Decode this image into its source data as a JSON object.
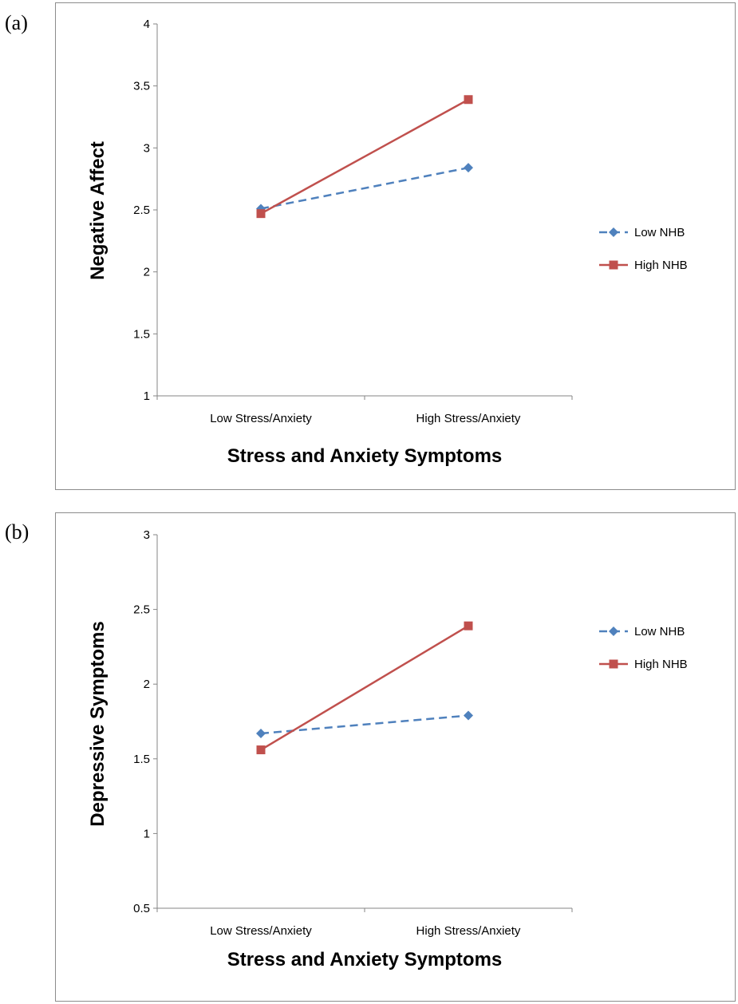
{
  "panels": [
    {
      "letter": "(a)",
      "chart_data": {
        "type": "line",
        "categories": [
          "Low Stress/Anxiety",
          "High Stress/Anxiety"
        ],
        "series": [
          {
            "name": "Low NHB",
            "values": [
              2.51,
              2.84
            ],
            "color": "#4f81bd",
            "marker": "diamond",
            "dash": true
          },
          {
            "name": "High NHB",
            "values": [
              2.47,
              3.39
            ],
            "color": "#c0504d",
            "marker": "square",
            "dash": false
          }
        ],
        "title": "",
        "xlabel": "Stress and Anxiety Symptoms",
        "ylabel": "Negative Affect",
        "ylim": [
          1,
          4
        ],
        "yticks": [
          "1",
          "1.5",
          "2",
          "2.5",
          "3",
          "3.5",
          "4"
        ],
        "ytick_values": [
          1,
          1.5,
          2,
          2.5,
          3,
          3.5,
          4
        ],
        "grid": false,
        "legend_position": "right"
      }
    },
    {
      "letter": "(b)",
      "chart_data": {
        "type": "line",
        "categories": [
          "Low Stress/Anxiety",
          "High Stress/Anxiety"
        ],
        "series": [
          {
            "name": "Low NHB",
            "values": [
              1.67,
              1.79
            ],
            "color": "#4f81bd",
            "marker": "diamond",
            "dash": true
          },
          {
            "name": "High NHB",
            "values": [
              1.56,
              2.39
            ],
            "color": "#c0504d",
            "marker": "square",
            "dash": false
          }
        ],
        "title": "",
        "xlabel": "Stress and Anxiety Symptoms",
        "ylabel": "Depressive Symptoms",
        "ylim": [
          0.5,
          3
        ],
        "yticks": [
          "0.5",
          "1",
          "1.5",
          "2",
          "2.5",
          "3"
        ],
        "ytick_values": [
          0.5,
          1,
          1.5,
          2,
          2.5,
          3
        ],
        "grid": false,
        "legend_position": "right"
      }
    }
  ]
}
